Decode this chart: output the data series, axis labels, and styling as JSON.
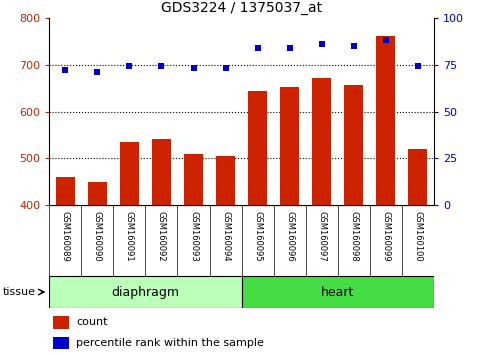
{
  "title": "GDS3224 / 1375037_at",
  "samples": [
    "GSM160089",
    "GSM160090",
    "GSM160091",
    "GSM160092",
    "GSM160093",
    "GSM160094",
    "GSM160095",
    "GSM160096",
    "GSM160097",
    "GSM160098",
    "GSM160099",
    "GSM160100"
  ],
  "counts": [
    460,
    450,
    535,
    542,
    510,
    505,
    643,
    653,
    672,
    657,
    760,
    520
  ],
  "percentiles": [
    72,
    71,
    74,
    74,
    73,
    73,
    84,
    84,
    86,
    85,
    88,
    74
  ],
  "groups": [
    {
      "name": "diaphragm",
      "start": 0,
      "end": 5,
      "color": "#BBFFBB"
    },
    {
      "name": "heart",
      "start": 6,
      "end": 11,
      "color": "#44DD44"
    }
  ],
  "ylim_left": [
    400,
    800
  ],
  "ylim_right": [
    0,
    100
  ],
  "yticks_left": [
    400,
    500,
    600,
    700,
    800
  ],
  "yticks_right": [
    0,
    25,
    50,
    75,
    100
  ],
  "bar_color": "#CC2200",
  "dot_color": "#0000CC",
  "background_color": "#FFFFFF",
  "plot_bg_color": "#FFFFFF",
  "sample_box_color": "#D8D8D8",
  "legend_count_label": "count",
  "legend_pct_label": "percentile rank within the sample",
  "tissue_label": "tissue"
}
